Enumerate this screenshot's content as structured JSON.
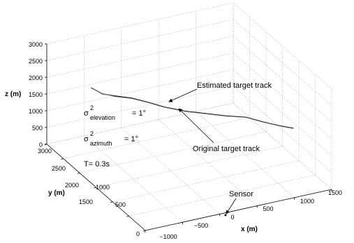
{
  "chart_data": {
    "type": "line3d",
    "xlabel": "x (m)",
    "ylabel": "y (m)",
    "zlabel": "z (m)",
    "x_ticks": [
      "−1000",
      "−500",
      "0",
      "500",
      "1000",
      "1500"
    ],
    "y_ticks": [
      "0",
      "500",
      "1000",
      "1500",
      "2000",
      "2500",
      "3000"
    ],
    "z_ticks": [
      "0",
      "500",
      "1000",
      "1500",
      "2000",
      "2500",
      "3000"
    ],
    "xlim": [
      -1000,
      1500
    ],
    "ylim": [
      0,
      3000
    ],
    "zlim": [
      0,
      3000
    ],
    "grid": true,
    "series": [
      {
        "name": "Estimated target track",
        "points": [
          [
            -1000,
            1650,
            2850
          ],
          [
            -850,
            1640,
            2600
          ],
          [
            -700,
            1600,
            2500
          ],
          [
            -500,
            1550,
            2380
          ],
          [
            -300,
            1500,
            2200
          ],
          [
            -100,
            1450,
            2000
          ],
          [
            150,
            1400,
            1800
          ],
          [
            400,
            1350,
            1650
          ],
          [
            650,
            1300,
            1500
          ],
          [
            900,
            1250,
            1380
          ],
          [
            1100,
            1180,
            1200
          ],
          [
            1300,
            1100,
            1050
          ],
          [
            1450,
            1050,
            950
          ]
        ]
      },
      {
        "name": "Original target track",
        "points": [
          [
            -1000,
            1650,
            2840
          ],
          [
            -850,
            1640,
            2610
          ],
          [
            -700,
            1600,
            2480
          ],
          [
            -500,
            1550,
            2370
          ],
          [
            -300,
            1500,
            2190
          ],
          [
            -100,
            1450,
            1990
          ],
          [
            150,
            1400,
            1790
          ],
          [
            400,
            1350,
            1640
          ],
          [
            650,
            1300,
            1490
          ],
          [
            900,
            1250,
            1370
          ],
          [
            1100,
            1180,
            1190
          ],
          [
            1300,
            1100,
            1040
          ],
          [
            1450,
            1050,
            940
          ]
        ]
      }
    ],
    "sensor": {
      "label": "Sensor",
      "x": 0,
      "y": 0,
      "z": 0
    },
    "annotations": {
      "sigma_elevation": {
        "symbol": "σ",
        "sup": "2",
        "sub": "elevation",
        "value": "= 1°"
      },
      "sigma_azimuth": {
        "symbol": "σ",
        "sup": "2",
        "sub": "azimuth",
        "value": "= 1°"
      },
      "period": "T= 0.3s"
    }
  }
}
